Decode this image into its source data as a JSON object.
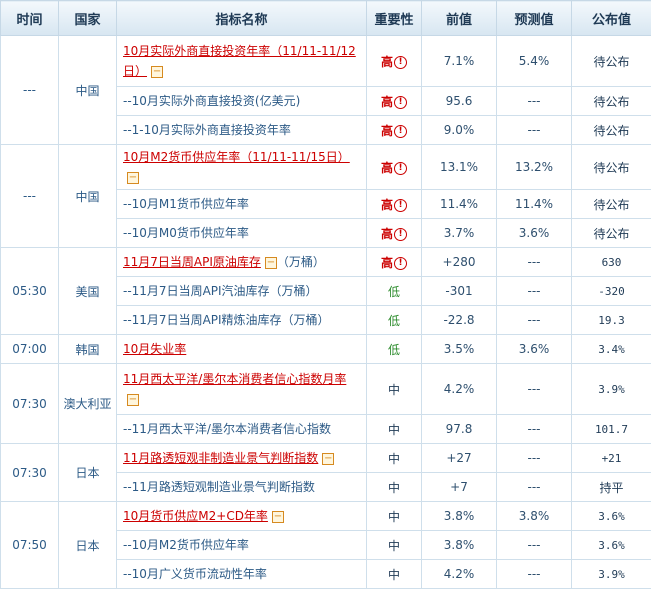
{
  "headers": {
    "time": "时间",
    "country": "国家",
    "indicator": "指标名称",
    "importance": "重要性",
    "previous": "前值",
    "forecast": "预测值",
    "published": "公布值"
  },
  "groups": [
    {
      "time": "---",
      "country": "中国",
      "rows": [
        {
          "name": "10月实际外商直接投资年率（11/11-11/12日）",
          "main": true,
          "importance": "高",
          "previous": "7.1%",
          "forecast": "5.4%",
          "published": "待公布"
        },
        {
          "name": "--10月实际外商直接投资(亿美元)",
          "importance": "高",
          "previous": "95.6",
          "forecast": "---",
          "published": "待公布"
        },
        {
          "name": "--1-10月实际外商直接投资年率",
          "importance": "高",
          "previous": "9.0%",
          "forecast": "---",
          "published": "待公布"
        }
      ]
    },
    {
      "time": "---",
      "country": "中国",
      "rows": [
        {
          "name": "10月M2货币供应年率（11/11-11/15日）",
          "main": true,
          "importance": "高",
          "previous": "13.1%",
          "forecast": "13.2%",
          "published": "待公布"
        },
        {
          "name": "--10月M1货币供应年率",
          "importance": "高",
          "previous": "11.4%",
          "forecast": "11.4%",
          "published": "待公布"
        },
        {
          "name": "--10月M0货币供应年率",
          "importance": "高",
          "previous": "3.7%",
          "forecast": "3.6%",
          "published": "待公布"
        }
      ]
    },
    {
      "time": "05:30",
      "country": "美国",
      "rows": [
        {
          "name": "11月7日当周API原油库存",
          "suffix": "（万桶）",
          "main": true,
          "importance": "高",
          "previous": "+280",
          "forecast": "---",
          "published": "630"
        },
        {
          "name": "--11月7日当周API汽油库存（万桶）",
          "importance": "低",
          "previous": "-301",
          "forecast": "---",
          "published": "-320"
        },
        {
          "name": "--11月7日当周API精炼油库存（万桶）",
          "importance": "低",
          "previous": "-22.8",
          "forecast": "---",
          "published": "19.3"
        }
      ]
    },
    {
      "time": "07:00",
      "country": "韩国",
      "rows": [
        {
          "name": "10月失业率",
          "main": true,
          "noicon": true,
          "importance": "低",
          "previous": "3.5%",
          "forecast": "3.6%",
          "published": "3.4%"
        }
      ]
    },
    {
      "time": "07:30",
      "country": "澳大利亚",
      "rows": [
        {
          "name": "11月西太平洋/墨尔本消费者信心指数月率",
          "main": true,
          "importance": "中",
          "previous": "4.2%",
          "forecast": "---",
          "published": "3.9%"
        },
        {
          "name": "--11月西太平洋/墨尔本消费者信心指数",
          "importance": "中",
          "previous": "97.8",
          "forecast": "---",
          "published": "101.7"
        }
      ]
    },
    {
      "time": "07:30",
      "country": "日本",
      "rows": [
        {
          "name": "11月路透短观非制造业景气判断指数",
          "main": true,
          "importance": "中",
          "previous": "+27",
          "forecast": "---",
          "published": "+21"
        },
        {
          "name": "--11月路透短观制造业景气判断指数",
          "importance": "中",
          "previous": "+7",
          "forecast": "---",
          "published": "持平"
        }
      ]
    },
    {
      "time": "07:50",
      "country": "日本",
      "rows": [
        {
          "name": "10月货币供应M2+CD年率",
          "main": true,
          "importance": "中",
          "previous": "3.8%",
          "forecast": "3.8%",
          "published": "3.6%"
        },
        {
          "name": "--10月M2货币供应年率",
          "importance": "中",
          "previous": "3.8%",
          "forecast": "---",
          "published": "3.6%"
        },
        {
          "name": "--10月广义货币流动性年率",
          "importance": "中",
          "previous": "4.2%",
          "forecast": "---",
          "published": "3.9%"
        }
      ]
    }
  ],
  "colors": {
    "high": "#cc0000",
    "low": "#2c8c2c",
    "mid": "#1f3a55",
    "link": "#2c5a86"
  },
  "icons": {
    "collapse": "minus-box-icon",
    "alert": "exclamation-circle-icon"
  }
}
